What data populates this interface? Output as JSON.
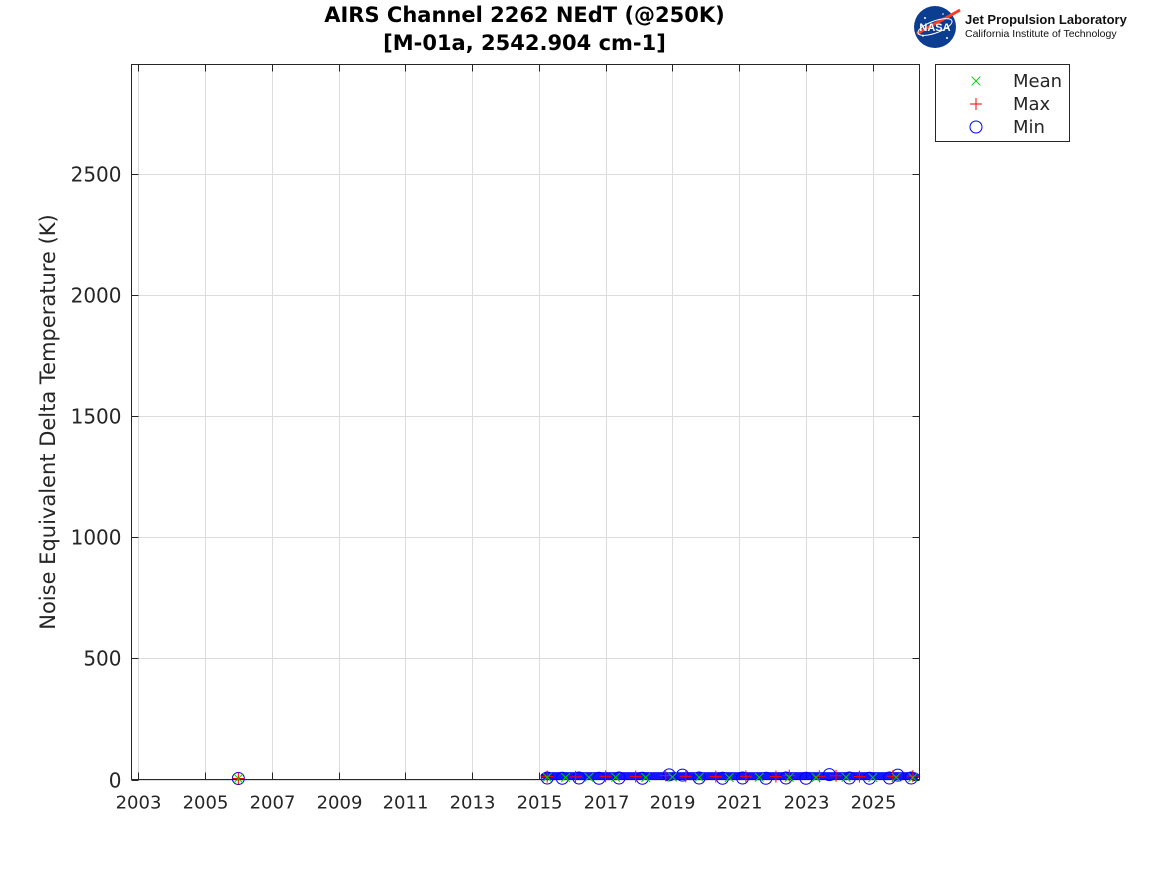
{
  "header": {
    "title_line1": "AIRS Channel 2262 NEdT (@250K)",
    "title_line2": "[M-01a, 2542.904 cm-1]"
  },
  "logo": {
    "badge_text": "NASA",
    "line1": "Jet Propulsion Laboratory",
    "line2": "California Institute of Technology"
  },
  "legend": {
    "placement": "outside-top-right",
    "items": [
      {
        "label": "Mean",
        "marker": "x",
        "color": "#00cc00"
      },
      {
        "label": "Max",
        "marker": "+",
        "color": "#ff0000"
      },
      {
        "label": "Min",
        "marker": "o",
        "color": "#0000ff"
      }
    ]
  },
  "chart_data": {
    "type": "scatter",
    "title": "AIRS Channel 2262 NEdT (@250K)",
    "subtitle": "[M-01a, 2542.904 cm-1]",
    "xlabel": "",
    "ylabel": "Noise Equivalent Delta Temperature (K)",
    "xlim": [
      2002.8,
      2026.4
    ],
    "ylim": [
      0,
      2950
    ],
    "grid": true,
    "xticks": [
      2003,
      2005,
      2007,
      2009,
      2011,
      2013,
      2015,
      2017,
      2019,
      2021,
      2023,
      2025
    ],
    "yticks": [
      0,
      500,
      1000,
      1500,
      2000,
      2500
    ],
    "x_tick_labels": [
      "2003",
      "2005",
      "2007",
      "2009",
      "2011",
      "2013",
      "2015",
      "2017",
      "2019",
      "2021",
      "2023",
      "2025"
    ],
    "y_tick_labels": [
      "0",
      "500",
      "1000",
      "1500",
      "2000",
      "2500"
    ],
    "series": [
      {
        "name": "Mean",
        "marker": "x",
        "color": "#00cc00",
        "points": [
          [
            2006.0,
            0
          ],
          [
            2015.25,
            5
          ],
          [
            2015.8,
            4
          ],
          [
            2016.5,
            5
          ],
          [
            2017.3,
            5
          ],
          [
            2018.2,
            4
          ],
          [
            2019.0,
            6
          ],
          [
            2019.8,
            5
          ],
          [
            2020.7,
            4
          ],
          [
            2021.6,
            5
          ],
          [
            2022.5,
            5
          ],
          [
            2023.3,
            4
          ],
          [
            2024.2,
            5
          ],
          [
            2025.0,
            4
          ],
          [
            2025.7,
            5
          ],
          [
            2026.2,
            4
          ]
        ]
      },
      {
        "name": "Max",
        "marker": "+",
        "color": "#ff0000",
        "points": [
          [
            2006.0,
            0
          ],
          [
            2015.25,
            8
          ],
          [
            2016.1,
            7
          ],
          [
            2017.0,
            9
          ],
          [
            2017.9,
            8
          ],
          [
            2018.8,
            12
          ],
          [
            2019.4,
            9
          ],
          [
            2020.3,
            8
          ],
          [
            2021.2,
            9
          ],
          [
            2022.1,
            8
          ],
          [
            2022.5,
            12
          ],
          [
            2023.4,
            9
          ],
          [
            2023.9,
            11
          ],
          [
            2024.6,
            8
          ],
          [
            2025.6,
            9
          ],
          [
            2026.2,
            10
          ]
        ]
      },
      {
        "name": "Min",
        "marker": "o",
        "color": "#0000ff",
        "points": [
          [
            2006.0,
            0
          ],
          [
            2015.25,
            2
          ],
          [
            2015.7,
            1
          ],
          [
            2016.2,
            2
          ],
          [
            2016.8,
            1
          ],
          [
            2017.4,
            2
          ],
          [
            2018.1,
            1
          ],
          [
            2018.9,
            15
          ],
          [
            2019.3,
            14
          ],
          [
            2019.8,
            2
          ],
          [
            2020.5,
            1
          ],
          [
            2021.1,
            2
          ],
          [
            2021.8,
            1
          ],
          [
            2022.4,
            2
          ],
          [
            2023.0,
            1
          ],
          [
            2023.7,
            16
          ],
          [
            2024.3,
            2
          ],
          [
            2024.9,
            1
          ],
          [
            2025.5,
            2
          ],
          [
            2025.75,
            14
          ],
          [
            2026.15,
            2
          ]
        ]
      }
    ],
    "dense_band": {
      "series": "Min",
      "x_range": [
        2015.2,
        2026.25
      ],
      "y_range": [
        0,
        18
      ]
    }
  }
}
